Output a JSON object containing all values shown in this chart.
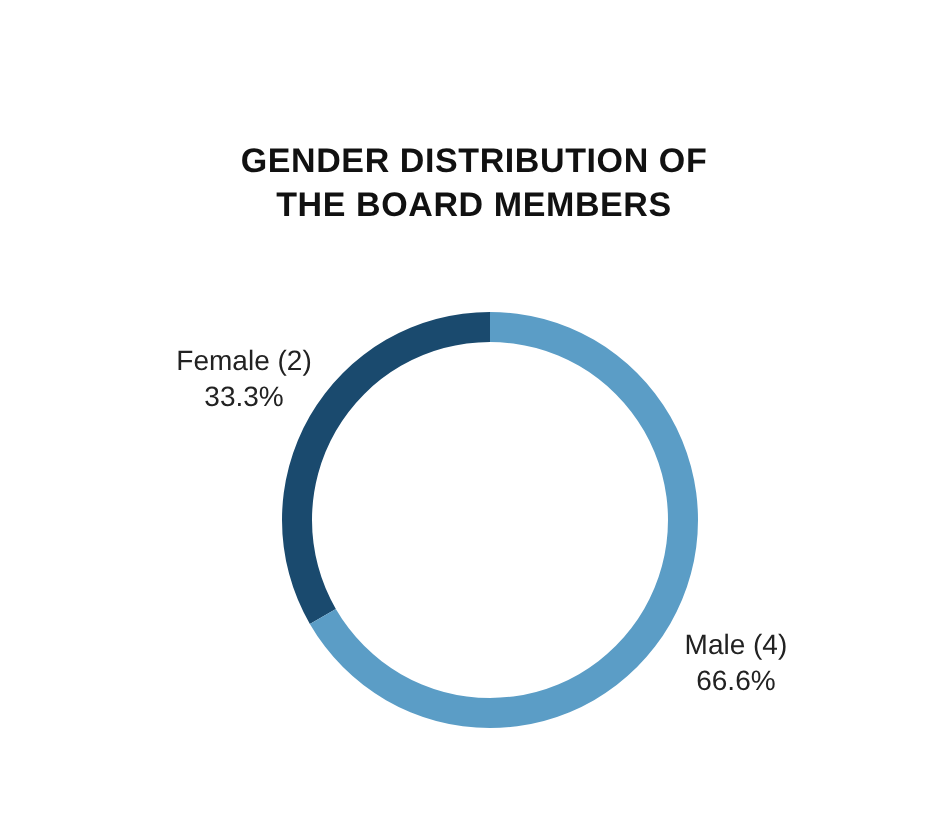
{
  "chart_data": {
    "type": "donut",
    "title": "GENDER DISTRIBUTION OF\nTHE BOARD MEMBERS",
    "categories": [
      "Female (2)",
      "Male (4)"
    ],
    "values": [
      33.3,
      66.6
    ],
    "value_labels": [
      "33.3%",
      "66.6%"
    ],
    "colors": [
      "#1a4a6e",
      "#5b9dc6"
    ]
  }
}
